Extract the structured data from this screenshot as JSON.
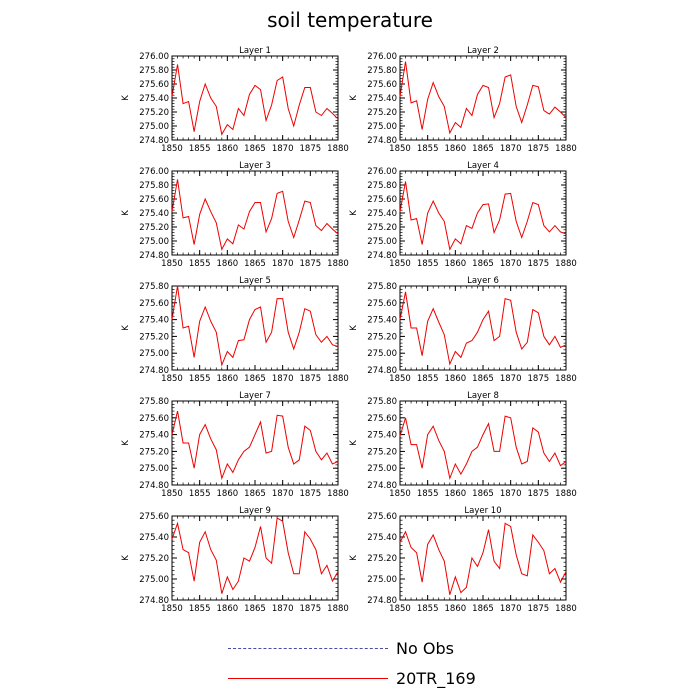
{
  "title": "soil temperature",
  "chart_data": {
    "type": "line",
    "ylabel": "K",
    "xlim": [
      1850,
      1880
    ],
    "xticks": [
      "1850",
      "1855",
      "1860",
      "1865",
      "1870",
      "1875",
      "1880"
    ],
    "years": [
      1850,
      1851,
      1852,
      1853,
      1854,
      1855,
      1856,
      1857,
      1858,
      1859,
      1860,
      1861,
      1862,
      1863,
      1864,
      1865,
      1866,
      1867,
      1868,
      1869,
      1870,
      1871,
      1872,
      1873,
      1874,
      1875,
      1876,
      1877,
      1878,
      1879,
      1880
    ],
    "series_color": "#ee0000",
    "panels": [
      {
        "title": "Layer 1",
        "ylim": [
          274.8,
          276.0
        ],
        "yticks": [
          "274.80",
          "275.00",
          "275.20",
          "275.40",
          "275.60",
          "275.80",
          "276.00"
        ],
        "values": [
          275.42,
          275.88,
          275.32,
          275.35,
          274.92,
          275.35,
          275.6,
          275.4,
          275.28,
          274.88,
          275.02,
          274.95,
          275.25,
          275.15,
          275.45,
          275.58,
          275.52,
          275.08,
          275.3,
          275.65,
          275.7,
          275.25,
          275.0,
          275.3,
          275.55,
          275.55,
          275.2,
          275.15,
          275.25,
          275.18,
          275.1
        ]
      },
      {
        "title": "Layer 2",
        "ylim": [
          274.8,
          276.0
        ],
        "yticks": [
          "274.80",
          "275.00",
          "275.20",
          "275.40",
          "275.60",
          "275.80",
          "276.00"
        ],
        "values": [
          275.42,
          275.92,
          275.33,
          275.36,
          274.95,
          275.38,
          275.62,
          275.42,
          275.28,
          274.9,
          275.05,
          274.98,
          275.25,
          275.15,
          275.45,
          275.58,
          275.55,
          275.12,
          275.32,
          275.7,
          275.73,
          275.28,
          275.05,
          275.3,
          275.58,
          275.56,
          275.22,
          275.17,
          275.27,
          275.2,
          275.12
        ]
      },
      {
        "title": "Layer 3",
        "ylim": [
          274.8,
          276.0
        ],
        "yticks": [
          "274.80",
          "275.00",
          "275.20",
          "275.40",
          "275.60",
          "275.80",
          "276.00"
        ],
        "values": [
          275.42,
          275.88,
          275.33,
          275.35,
          274.95,
          275.38,
          275.6,
          275.42,
          275.26,
          274.88,
          275.03,
          274.96,
          275.23,
          275.17,
          275.42,
          275.55,
          275.55,
          275.13,
          275.32,
          275.68,
          275.71,
          275.28,
          275.05,
          275.3,
          275.57,
          275.55,
          275.22,
          275.15,
          275.25,
          275.17,
          275.1
        ]
      },
      {
        "title": "Layer 4",
        "ylim": [
          274.8,
          276.0
        ],
        "yticks": [
          "274.80",
          "275.00",
          "275.20",
          "275.40",
          "275.60",
          "275.80",
          "276.00"
        ],
        "values": [
          275.42,
          275.85,
          275.3,
          275.32,
          274.95,
          275.4,
          275.57,
          275.4,
          275.28,
          274.88,
          275.03,
          274.96,
          275.22,
          275.18,
          275.4,
          275.52,
          275.53,
          275.12,
          275.3,
          275.67,
          275.68,
          275.28,
          275.05,
          275.28,
          275.55,
          275.52,
          275.22,
          275.13,
          275.22,
          275.13,
          275.1
        ]
      },
      {
        "title": "Layer 5",
        "ylim": [
          274.8,
          275.8
        ],
        "yticks": [
          "274.80",
          "275.00",
          "275.20",
          "275.40",
          "275.60",
          "275.80"
        ],
        "values": [
          275.4,
          275.8,
          275.3,
          275.32,
          274.95,
          275.38,
          275.55,
          275.38,
          275.25,
          274.86,
          275.02,
          274.95,
          275.15,
          275.16,
          275.4,
          275.52,
          275.55,
          275.13,
          275.25,
          275.65,
          275.65,
          275.25,
          275.05,
          275.25,
          275.53,
          275.5,
          275.22,
          275.13,
          275.2,
          275.1,
          275.08
        ]
      },
      {
        "title": "Layer 6",
        "ylim": [
          274.8,
          275.8
        ],
        "yticks": [
          "274.80",
          "275.00",
          "275.20",
          "275.40",
          "275.60",
          "275.80"
        ],
        "values": [
          275.4,
          275.73,
          275.3,
          275.3,
          274.97,
          275.38,
          275.53,
          275.37,
          275.22,
          274.87,
          275.02,
          274.95,
          275.12,
          275.15,
          275.25,
          275.4,
          275.5,
          275.15,
          275.2,
          275.65,
          275.63,
          275.25,
          275.05,
          275.13,
          275.52,
          275.48,
          275.2,
          275.1,
          275.2,
          275.07,
          275.1
        ]
      },
      {
        "title": "Layer 7",
        "ylim": [
          274.8,
          275.8
        ],
        "yticks": [
          "274.80",
          "275.00",
          "275.20",
          "275.40",
          "275.60",
          "275.80"
        ],
        "values": [
          275.4,
          275.68,
          275.3,
          275.3,
          275.0,
          275.4,
          275.52,
          275.35,
          275.22,
          274.88,
          275.05,
          274.95,
          275.1,
          275.2,
          275.25,
          275.4,
          275.55,
          275.18,
          275.2,
          275.63,
          275.62,
          275.25,
          275.05,
          275.1,
          275.5,
          275.45,
          275.2,
          275.1,
          275.18,
          275.05,
          275.08
        ]
      },
      {
        "title": "Layer 8",
        "ylim": [
          274.8,
          275.8
        ],
        "yticks": [
          "274.80",
          "275.00",
          "275.20",
          "275.40",
          "275.60",
          "275.80"
        ],
        "values": [
          275.38,
          275.6,
          275.28,
          275.28,
          275.0,
          275.4,
          275.5,
          275.33,
          275.2,
          274.88,
          275.05,
          274.93,
          275.05,
          275.2,
          275.25,
          275.4,
          275.53,
          275.2,
          275.2,
          275.62,
          275.6,
          275.25,
          275.05,
          275.08,
          275.48,
          275.43,
          275.18,
          275.08,
          275.18,
          275.03,
          275.08
        ]
      },
      {
        "title": "Layer 9",
        "ylim": [
          274.8,
          275.6
        ],
        "yticks": [
          "274.80",
          "275.00",
          "275.20",
          "275.40",
          "275.60"
        ],
        "values": [
          275.38,
          275.53,
          275.28,
          275.25,
          274.98,
          275.35,
          275.45,
          275.28,
          275.18,
          274.86,
          275.02,
          274.9,
          274.98,
          275.2,
          275.17,
          275.3,
          275.5,
          275.2,
          275.15,
          275.58,
          275.55,
          275.25,
          275.05,
          275.05,
          275.45,
          275.38,
          275.28,
          275.05,
          275.13,
          274.98,
          275.07
        ]
      },
      {
        "title": "Layer 10",
        "ylim": [
          274.8,
          275.6
        ],
        "yticks": [
          "274.80",
          "275.00",
          "275.20",
          "275.40",
          "275.60"
        ],
        "values": [
          275.35,
          275.45,
          275.3,
          275.25,
          274.97,
          275.33,
          275.42,
          275.28,
          275.17,
          274.85,
          275.02,
          274.87,
          274.92,
          275.2,
          275.12,
          275.25,
          275.47,
          275.17,
          275.1,
          275.53,
          275.5,
          275.23,
          275.05,
          275.03,
          275.42,
          275.35,
          275.27,
          275.05,
          275.1,
          274.97,
          275.07
        ]
      }
    ],
    "legend": [
      {
        "label": "No Obs",
        "color": "#4a4aaa",
        "dash": "dashed"
      },
      {
        "label": "20TR_169",
        "color": "#ee0000",
        "dash": "solid"
      }
    ]
  }
}
